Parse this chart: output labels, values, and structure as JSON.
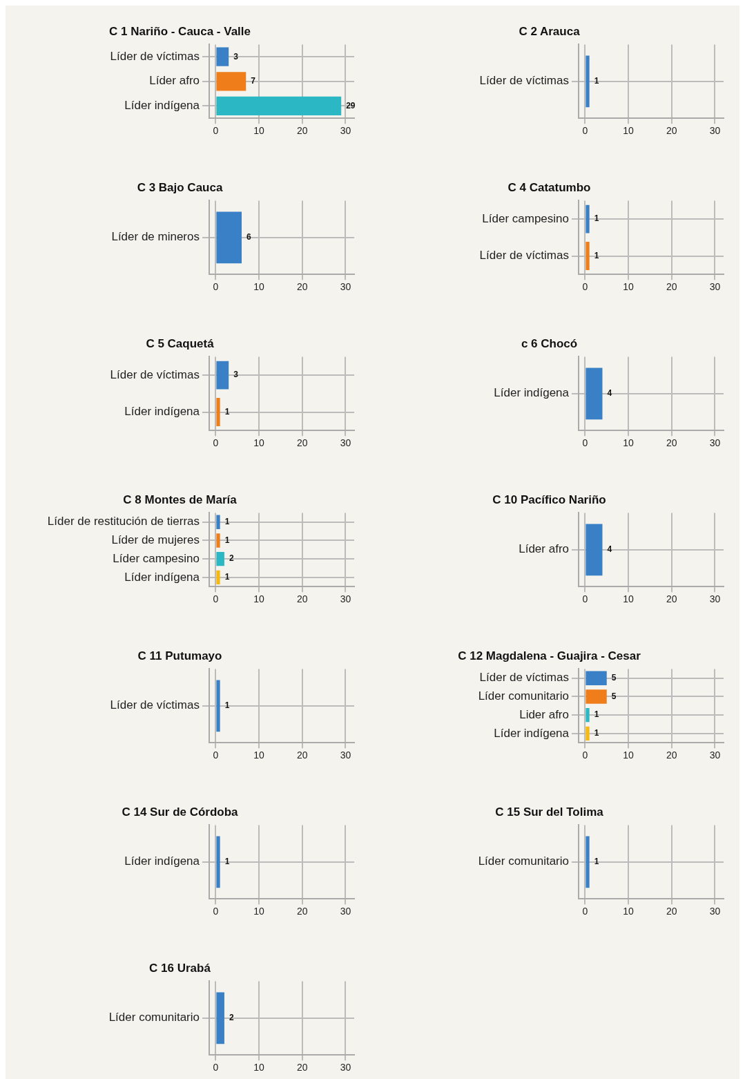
{
  "chart_data": [
    {
      "type": "bar",
      "orientation": "horizontal",
      "title": "C 1 Nariño - Cauca - Valle",
      "categories": [
        "Líder de víctimas",
        "Líder afro",
        "Líder indígena"
      ],
      "values": [
        3,
        7,
        29
      ],
      "colors": [
        "#3a80c6",
        "#ef7d1a",
        "#2bb8c4"
      ],
      "xlim": [
        -1.5,
        32
      ],
      "xticks": [
        0,
        10,
        20,
        30
      ],
      "grid": true,
      "data_labels": true
    },
    {
      "type": "bar",
      "orientation": "horizontal",
      "title": "C 2 Arauca",
      "categories": [
        "Líder de víctimas"
      ],
      "values": [
        1
      ],
      "colors": [
        "#3a80c6"
      ],
      "xlim": [
        -1.5,
        32
      ],
      "xticks": [
        0,
        10,
        20,
        30
      ],
      "grid": true,
      "data_labels": true
    },
    {
      "type": "bar",
      "orientation": "horizontal",
      "title": "C 3 Bajo Cauca",
      "categories": [
        "Líder de mineros"
      ],
      "values": [
        6
      ],
      "colors": [
        "#3a80c6"
      ],
      "xlim": [
        -1.5,
        32
      ],
      "xticks": [
        0,
        10,
        20,
        30
      ],
      "grid": true,
      "data_labels": true
    },
    {
      "type": "bar",
      "orientation": "horizontal",
      "title": "C 4 Catatumbo",
      "categories": [
        "Líder campesino",
        "Líder de víctimas"
      ],
      "values": [
        1,
        1
      ],
      "colors": [
        "#3a80c6",
        "#ef7d1a"
      ],
      "xlim": [
        -1.5,
        32
      ],
      "xticks": [
        0,
        10,
        20,
        30
      ],
      "grid": true,
      "data_labels": true
    },
    {
      "type": "bar",
      "orientation": "horizontal",
      "title": "C 5 Caquetá",
      "categories": [
        "Líder de víctimas",
        "Líder indígena"
      ],
      "values": [
        3,
        1
      ],
      "colors": [
        "#3a80c6",
        "#ef7d1a"
      ],
      "xlim": [
        -1.5,
        32
      ],
      "xticks": [
        0,
        10,
        20,
        30
      ],
      "grid": true,
      "data_labels": true
    },
    {
      "type": "bar",
      "orientation": "horizontal",
      "title": "c 6 Chocó",
      "categories": [
        "Líder indígena"
      ],
      "values": [
        4
      ],
      "colors": [
        "#3a80c6"
      ],
      "xlim": [
        -1.5,
        32
      ],
      "xticks": [
        0,
        10,
        20,
        30
      ],
      "grid": true,
      "data_labels": true
    },
    {
      "type": "bar",
      "orientation": "horizontal",
      "title": "C 8 Montes de María",
      "categories": [
        "Líder de restitución de tierras",
        "Líder de mujeres",
        "Líder campesino",
        "Líder indígena"
      ],
      "values": [
        1,
        1,
        2,
        1
      ],
      "colors": [
        "#3a80c6",
        "#ef7d1a",
        "#2bb8c4",
        "#f5b90f"
      ],
      "xlim": [
        -1.5,
        32
      ],
      "xticks": [
        0,
        10,
        20,
        30
      ],
      "grid": true,
      "data_labels": true
    },
    {
      "type": "bar",
      "orientation": "horizontal",
      "title": "C 10 Pacífico Nariño",
      "categories": [
        "Líder afro"
      ],
      "values": [
        4
      ],
      "colors": [
        "#3a80c6"
      ],
      "xlim": [
        -1.5,
        32
      ],
      "xticks": [
        0,
        10,
        20,
        30
      ],
      "grid": true,
      "data_labels": true
    },
    {
      "type": "bar",
      "orientation": "horizontal",
      "title": "C 11 Putumayo",
      "categories": [
        "Líder de víctimas"
      ],
      "values": [
        1
      ],
      "colors": [
        "#3a80c6"
      ],
      "xlim": [
        -1.5,
        32
      ],
      "xticks": [
        0,
        10,
        20,
        30
      ],
      "grid": true,
      "data_labels": true
    },
    {
      "type": "bar",
      "orientation": "horizontal",
      "title": "C 12 Magdalena - Guajira - Cesar",
      "categories": [
        "Líder de víctimas",
        "Líder comunitario",
        "Lider afro",
        "Líder indígena"
      ],
      "values": [
        5,
        5,
        1,
        1
      ],
      "colors": [
        "#3a80c6",
        "#ef7d1a",
        "#2bb8c4",
        "#f5b90f"
      ],
      "xlim": [
        -1.5,
        32
      ],
      "xticks": [
        0,
        10,
        20,
        30
      ],
      "grid": true,
      "data_labels": true
    },
    {
      "type": "bar",
      "orientation": "horizontal",
      "title": "C 14 Sur de Córdoba",
      "categories": [
        "Líder indígena"
      ],
      "values": [
        1
      ],
      "colors": [
        "#3a80c6"
      ],
      "xlim": [
        -1.5,
        32
      ],
      "xticks": [
        0,
        10,
        20,
        30
      ],
      "grid": true,
      "data_labels": true
    },
    {
      "type": "bar",
      "orientation": "horizontal",
      "title": "C 15 Sur del Tolima",
      "categories": [
        "Líder comunitario"
      ],
      "values": [
        1
      ],
      "colors": [
        "#3a80c6"
      ],
      "xlim": [
        -1.5,
        32
      ],
      "xticks": [
        0,
        10,
        20,
        30
      ],
      "grid": true,
      "data_labels": true
    },
    {
      "type": "bar",
      "orientation": "horizontal",
      "title": "C 16 Urabá",
      "categories": [
        "Líder comunitario"
      ],
      "values": [
        2
      ],
      "colors": [
        "#3a80c6"
      ],
      "xlim": [
        -1.5,
        32
      ],
      "xticks": [
        0,
        10,
        20,
        30
      ],
      "grid": true,
      "data_labels": true
    }
  ]
}
